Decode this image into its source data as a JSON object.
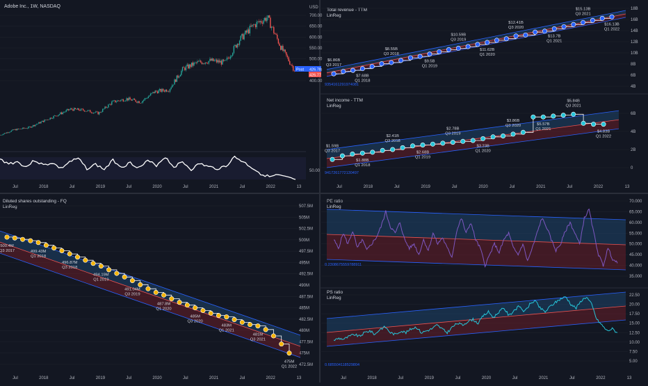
{
  "colors": {
    "background": "#131722",
    "text": "#d1d4dc",
    "axis_text": "#b2b5be",
    "grid": "#1e222d",
    "separator": "#2a2e39",
    "up": "#26a69a",
    "down": "#ef5350",
    "revenue_marker": "#2962ff",
    "income_marker": "#26c6da",
    "shares_marker": "#f5b50a",
    "pe_line": "#7e57c2",
    "ps_line": "#26c6da",
    "band_upper": "#1f4d7a",
    "band_lower": "#7a1f2a",
    "band_line": "#2962ff",
    "mid_line": "#ef5350",
    "label_blue": "#2962ff"
  },
  "chart_data": [
    {
      "id": "price",
      "type": "candlestick",
      "title": "Adobe Inc., 1W, NASDAQ",
      "currency": "USD",
      "ylim": [
        400,
        700
      ],
      "yticks": [
        "700.00",
        "650.00",
        "600.00",
        "550.00",
        "500.00",
        "450.00",
        "400.00"
      ],
      "last_price_labels": [
        "426.78",
        "426.77"
      ],
      "post_label": "Post",
      "x_ticks": [
        "Jul",
        "2018",
        "Jul",
        "2019",
        "Jul",
        "2020",
        "Jul",
        "2021",
        "Jul",
        "2022",
        "13"
      ],
      "x": [
        "2017-04",
        "2017-07",
        "2017-10",
        "2018-01",
        "2018-04",
        "2018-07",
        "2018-10",
        "2019-01",
        "2019-04",
        "2019-07",
        "2019-10",
        "2020-01",
        "2020-04",
        "2020-07",
        "2020-10",
        "2021-01",
        "2021-04",
        "2021-07",
        "2021-09",
        "2021-11",
        "2022-01",
        "2022-03"
      ],
      "close": [
        120,
        145,
        155,
        185,
        215,
        245,
        240,
        225,
        280,
        295,
        280,
        330,
        340,
        440,
        470,
        480,
        470,
        580,
        650,
        690,
        540,
        426.78
      ]
    },
    {
      "id": "oscillator",
      "type": "line",
      "ylim": [
        45,
        75
      ],
      "yticks": [
        "50.00"
      ],
      "values": [
        69,
        64,
        66,
        60,
        68,
        62,
        65,
        58,
        66,
        70,
        58,
        63,
        57,
        68,
        60,
        65,
        59,
        67,
        62,
        72,
        60,
        66,
        57,
        64,
        60,
        58,
        61,
        72,
        66,
        59,
        52,
        48,
        50,
        47,
        45
      ]
    },
    {
      "id": "revenue",
      "type": "line",
      "title": "Total revenue - TTM",
      "subtitle": "LinReg",
      "yticks": [
        "18B",
        "16B",
        "14B",
        "12B",
        "10B",
        "8B",
        "6B",
        "4B"
      ],
      "ylim": [
        4,
        18
      ],
      "regression_label": "9354161291974081",
      "x_ticks": [
        "Jul",
        "2018",
        "Jul",
        "2019",
        "Jul",
        "2020",
        "Jul",
        "2021",
        "Jul",
        "2022",
        "13"
      ],
      "points": [
        {
          "value": 6.86,
          "label": "$6.86B",
          "period": "Q3 2017"
        },
        {
          "value": 7.68,
          "label": "$7.68B",
          "period": "Q1 2018"
        },
        {
          "value": 8.55,
          "label": "$8.55B",
          "period": "Q3 2018"
        },
        {
          "value": 9.5,
          "label": "$9.5B",
          "period": "Q1 2019"
        },
        {
          "value": 10.59,
          "label": "$10.59B",
          "period": "Q3 2019"
        },
        {
          "value": 11.62,
          "label": "$11.62B",
          "period": "Q1 2020"
        },
        {
          "value": 12.41,
          "label": "$12.41B",
          "period": "Q3 2020"
        },
        {
          "value": 13.7,
          "label": "$13.7B",
          "period": "Q1 2021"
        },
        {
          "value": 15.13,
          "label": "$15.13B",
          "period": "Q3 2021"
        },
        {
          "value": 16.13,
          "label": "$16.13B",
          "period": "Q1 2022"
        }
      ]
    },
    {
      "id": "net_income",
      "type": "line",
      "title": "Net income - TTM",
      "subtitle": "LinReg",
      "yticks": [
        "6B",
        "4B",
        "2B",
        "0"
      ],
      "ylim": [
        -0.5,
        6.8
      ],
      "regression_label": "9417261772130497",
      "x_ticks": [
        "Jul",
        "2018",
        "Jul",
        "2019",
        "Jul",
        "2020",
        "Jul",
        "2021",
        "Jul",
        "2022",
        "13"
      ],
      "points": [
        {
          "value": 1.59,
          "label": "$1.59B",
          "period": "Q3 2017"
        },
        {
          "value": 1.88,
          "label": "$1.88B",
          "period": "Q1 2018"
        },
        {
          "value": 2.41,
          "label": "$2.41B",
          "period": "Q3 2018"
        },
        {
          "value": 2.68,
          "label": "$2.68B",
          "period": "Q1 2019"
        },
        {
          "value": 2.78,
          "label": "$2.78B",
          "period": "Q3 2019"
        },
        {
          "value": 3.23,
          "label": "$3.23B",
          "period": "Q1 2020"
        },
        {
          "value": 3.86,
          "label": "$3.86B",
          "period": "Q3 2020"
        },
        {
          "value": 5.57,
          "label": "$5.57B",
          "period": "Q1 2021"
        },
        {
          "value": 5.84,
          "label": "$5.84B",
          "period": "Q3 2021"
        },
        {
          "value": 4.83,
          "label": "$4.83B",
          "period": "Q1 2022"
        }
      ]
    },
    {
      "id": "shares",
      "type": "line",
      "title": "Diluted shares outstanding - FQ",
      "subtitle": "LinReg",
      "yticks": [
        "507.5M",
        "505M",
        "502.5M",
        "500M",
        "497.5M",
        "495M",
        "492.5M",
        "490M",
        "487.5M",
        "485M",
        "482.5M",
        "480M",
        "477.5M",
        "475M",
        "472.5M"
      ],
      "ylim": [
        471,
        509
      ],
      "x_ticks": [
        "Jul",
        "2018",
        "Jul",
        "2019",
        "Jul",
        "2020",
        "Jul",
        "2021",
        "Jul",
        "2022",
        "13"
      ],
      "points": [
        {
          "value": 500.4,
          "label": "500.4M",
          "period": "Q3 2017"
        },
        {
          "value": 499.43,
          "label": "499.43M",
          "period": "Q1 2018"
        },
        {
          "value": 496.87,
          "label": "496.87M",
          "period": "Q3 2018"
        },
        {
          "value": 494.19,
          "label": "494.19M",
          "period": "Q1 2019"
        },
        {
          "value": 491.04,
          "label": "491.04M",
          "period": "Q3 2019"
        },
        {
          "value": 487.8,
          "label": "487.8M",
          "period": "Q1 2020"
        },
        {
          "value": 485,
          "label": "485M",
          "period": "Q3 2020"
        },
        {
          "value": 483,
          "label": "483M",
          "period": "Q1 2021"
        },
        {
          "value": 481,
          "label": "481M",
          "period": "Q3 2021"
        },
        {
          "value": 475,
          "label": "475M",
          "period": "Q1 2022"
        }
      ]
    },
    {
      "id": "pe_ratio",
      "type": "line",
      "title": "PE ratio",
      "subtitle": "LinReg",
      "yticks": [
        "70.000",
        "65.000",
        "60.000",
        "55.000",
        "50.000",
        "45.000",
        "40.000",
        "35.000"
      ],
      "ylim": [
        33,
        71
      ],
      "regression_label": "0.2308675559788911",
      "values": [
        52,
        48,
        55,
        50,
        56,
        48,
        52,
        47,
        50,
        53,
        58,
        65,
        58,
        55,
        60,
        52,
        48,
        50,
        45,
        52,
        47,
        55,
        50,
        53,
        48,
        44,
        56,
        62,
        55,
        60,
        52,
        48,
        40,
        45,
        50,
        46,
        52,
        55,
        48,
        45,
        50,
        42,
        48,
        55,
        62,
        58,
        52,
        47,
        50,
        56,
        60,
        55,
        50,
        62,
        66,
        55,
        45,
        40,
        48,
        43,
        41
      ]
    },
    {
      "id": "ps_ratio",
      "type": "line",
      "title": "PS ratio",
      "subtitle": "LinReg",
      "yticks": [
        "22.50",
        "20.00",
        "17.50",
        "15.00",
        "12.50",
        "10.00",
        "7.50",
        "5.00"
      ],
      "ylim": [
        4,
        24
      ],
      "regression_label": "0.685504118529804",
      "x_ticks": [
        "Jul",
        "2018",
        "Jul",
        "2019",
        "Jul",
        "2020",
        "Jul",
        "2021",
        "Jul",
        "2022",
        "13"
      ],
      "values": [
        10.5,
        11,
        10.8,
        11.5,
        12,
        11.5,
        12.5,
        13,
        12,
        13.5,
        14,
        12.5,
        12,
        13,
        12.5,
        13.5,
        14,
        12.5,
        13,
        13.5,
        14.5,
        13.5,
        12.5,
        14,
        15,
        14.5,
        15.5,
        16,
        15,
        17,
        18,
        16.5,
        18,
        19,
        17,
        18.5,
        19.5,
        18,
        20,
        21,
        19,
        18,
        19.5,
        20.5,
        21.5,
        22,
        20,
        19,
        21,
        22,
        20,
        16,
        14.5,
        13,
        13.5,
        12.5
      ]
    }
  ]
}
